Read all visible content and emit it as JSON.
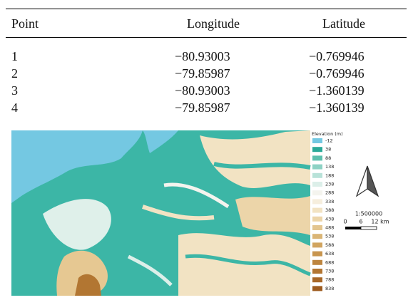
{
  "table": {
    "header": [
      "Point",
      "Longitude",
      "Latitude"
    ],
    "rows": [
      [
        "1",
        "−80.93003",
        "−0.769946"
      ],
      [
        "2",
        "−79.85987",
        "−0.769946"
      ],
      [
        "3",
        "−80.93003",
        "−1.360139"
      ],
      [
        "4",
        "−79.85987",
        "−1.360139"
      ]
    ]
  },
  "map": {
    "legend": {
      "title": "Elevation (m)",
      "items": [
        {
          "label": "-12",
          "color": "#74c8e2"
        },
        {
          "label": "38",
          "color": "#2aa998"
        },
        {
          "label": "88",
          "color": "#5cc0ae"
        },
        {
          "label": "138",
          "color": "#8dd2c4"
        },
        {
          "label": "188",
          "color": "#b8e2d8"
        },
        {
          "label": "238",
          "color": "#dcefe9"
        },
        {
          "label": "288",
          "color": "#f4f4ee"
        },
        {
          "label": "338",
          "color": "#f6eedd"
        },
        {
          "label": "388",
          "color": "#f2e3c3"
        },
        {
          "label": "438",
          "color": "#ecd5a9"
        },
        {
          "label": "488",
          "color": "#e3c58f"
        },
        {
          "label": "538",
          "color": "#dab575"
        },
        {
          "label": "588",
          "color": "#d1a560"
        },
        {
          "label": "638",
          "color": "#c8954e"
        },
        {
          "label": "688",
          "color": "#bd853f"
        },
        {
          "label": "738",
          "color": "#b27632"
        },
        {
          "label": "788",
          "color": "#a86828"
        },
        {
          "label": "838",
          "color": "#9d5b1f"
        }
      ]
    },
    "scale": "1:500000",
    "scale_bar": [
      "0",
      "6",
      "12 km"
    ]
  }
}
